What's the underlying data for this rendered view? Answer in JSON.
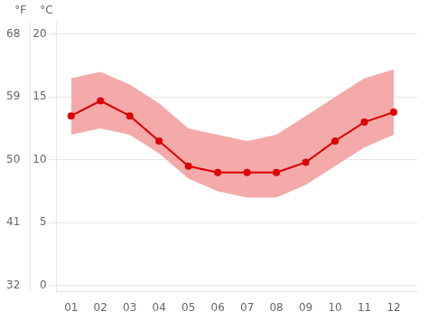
{
  "chart_data": {
    "type": "line",
    "x": [
      1,
      2,
      3,
      4,
      5,
      6,
      7,
      8,
      9,
      10,
      11,
      12
    ],
    "xlim": [
      0.5,
      12.8
    ],
    "xticks": [
      {
        "value": 1,
        "label": "01"
      },
      {
        "value": 2,
        "label": "02"
      },
      {
        "value": 3,
        "label": "03"
      },
      {
        "value": 4,
        "label": "04"
      },
      {
        "value": 5,
        "label": "05"
      },
      {
        "value": 6,
        "label": "06"
      },
      {
        "value": 7,
        "label": "07"
      },
      {
        "value": 8,
        "label": "08"
      },
      {
        "value": 9,
        "label": "09"
      },
      {
        "value": 10,
        "label": "10"
      },
      {
        "value": 11,
        "label": "11"
      },
      {
        "value": 12,
        "label": "12"
      }
    ],
    "ylim": [
      -0.5,
      21
    ],
    "yticks": [
      0,
      5,
      10,
      15,
      20
    ],
    "ylabel": "°C",
    "y2lim": [
      31.1,
      69.8
    ],
    "y2ticks": [
      32,
      41,
      50,
      59,
      68
    ],
    "y2label": "°F",
    "grid": "y",
    "series": [
      {
        "type": "band",
        "color": "#f5aaaa",
        "low": [
          12.0,
          12.5,
          12.0,
          10.5,
          8.5,
          7.5,
          7.0,
          7.0,
          8.0,
          9.5,
          11.0,
          12.0
        ],
        "high": [
          16.5,
          17.0,
          16.0,
          14.5,
          12.5,
          12.0,
          11.5,
          12.0,
          13.5,
          15.0,
          16.5,
          17.2
        ]
      },
      {
        "type": "line",
        "color": "#dd0000",
        "marker": "circle",
        "values": [
          13.5,
          14.7,
          13.5,
          11.5,
          9.5,
          9.0,
          9.0,
          9.0,
          9.8,
          11.5,
          13.0,
          13.8
        ]
      }
    ]
  }
}
